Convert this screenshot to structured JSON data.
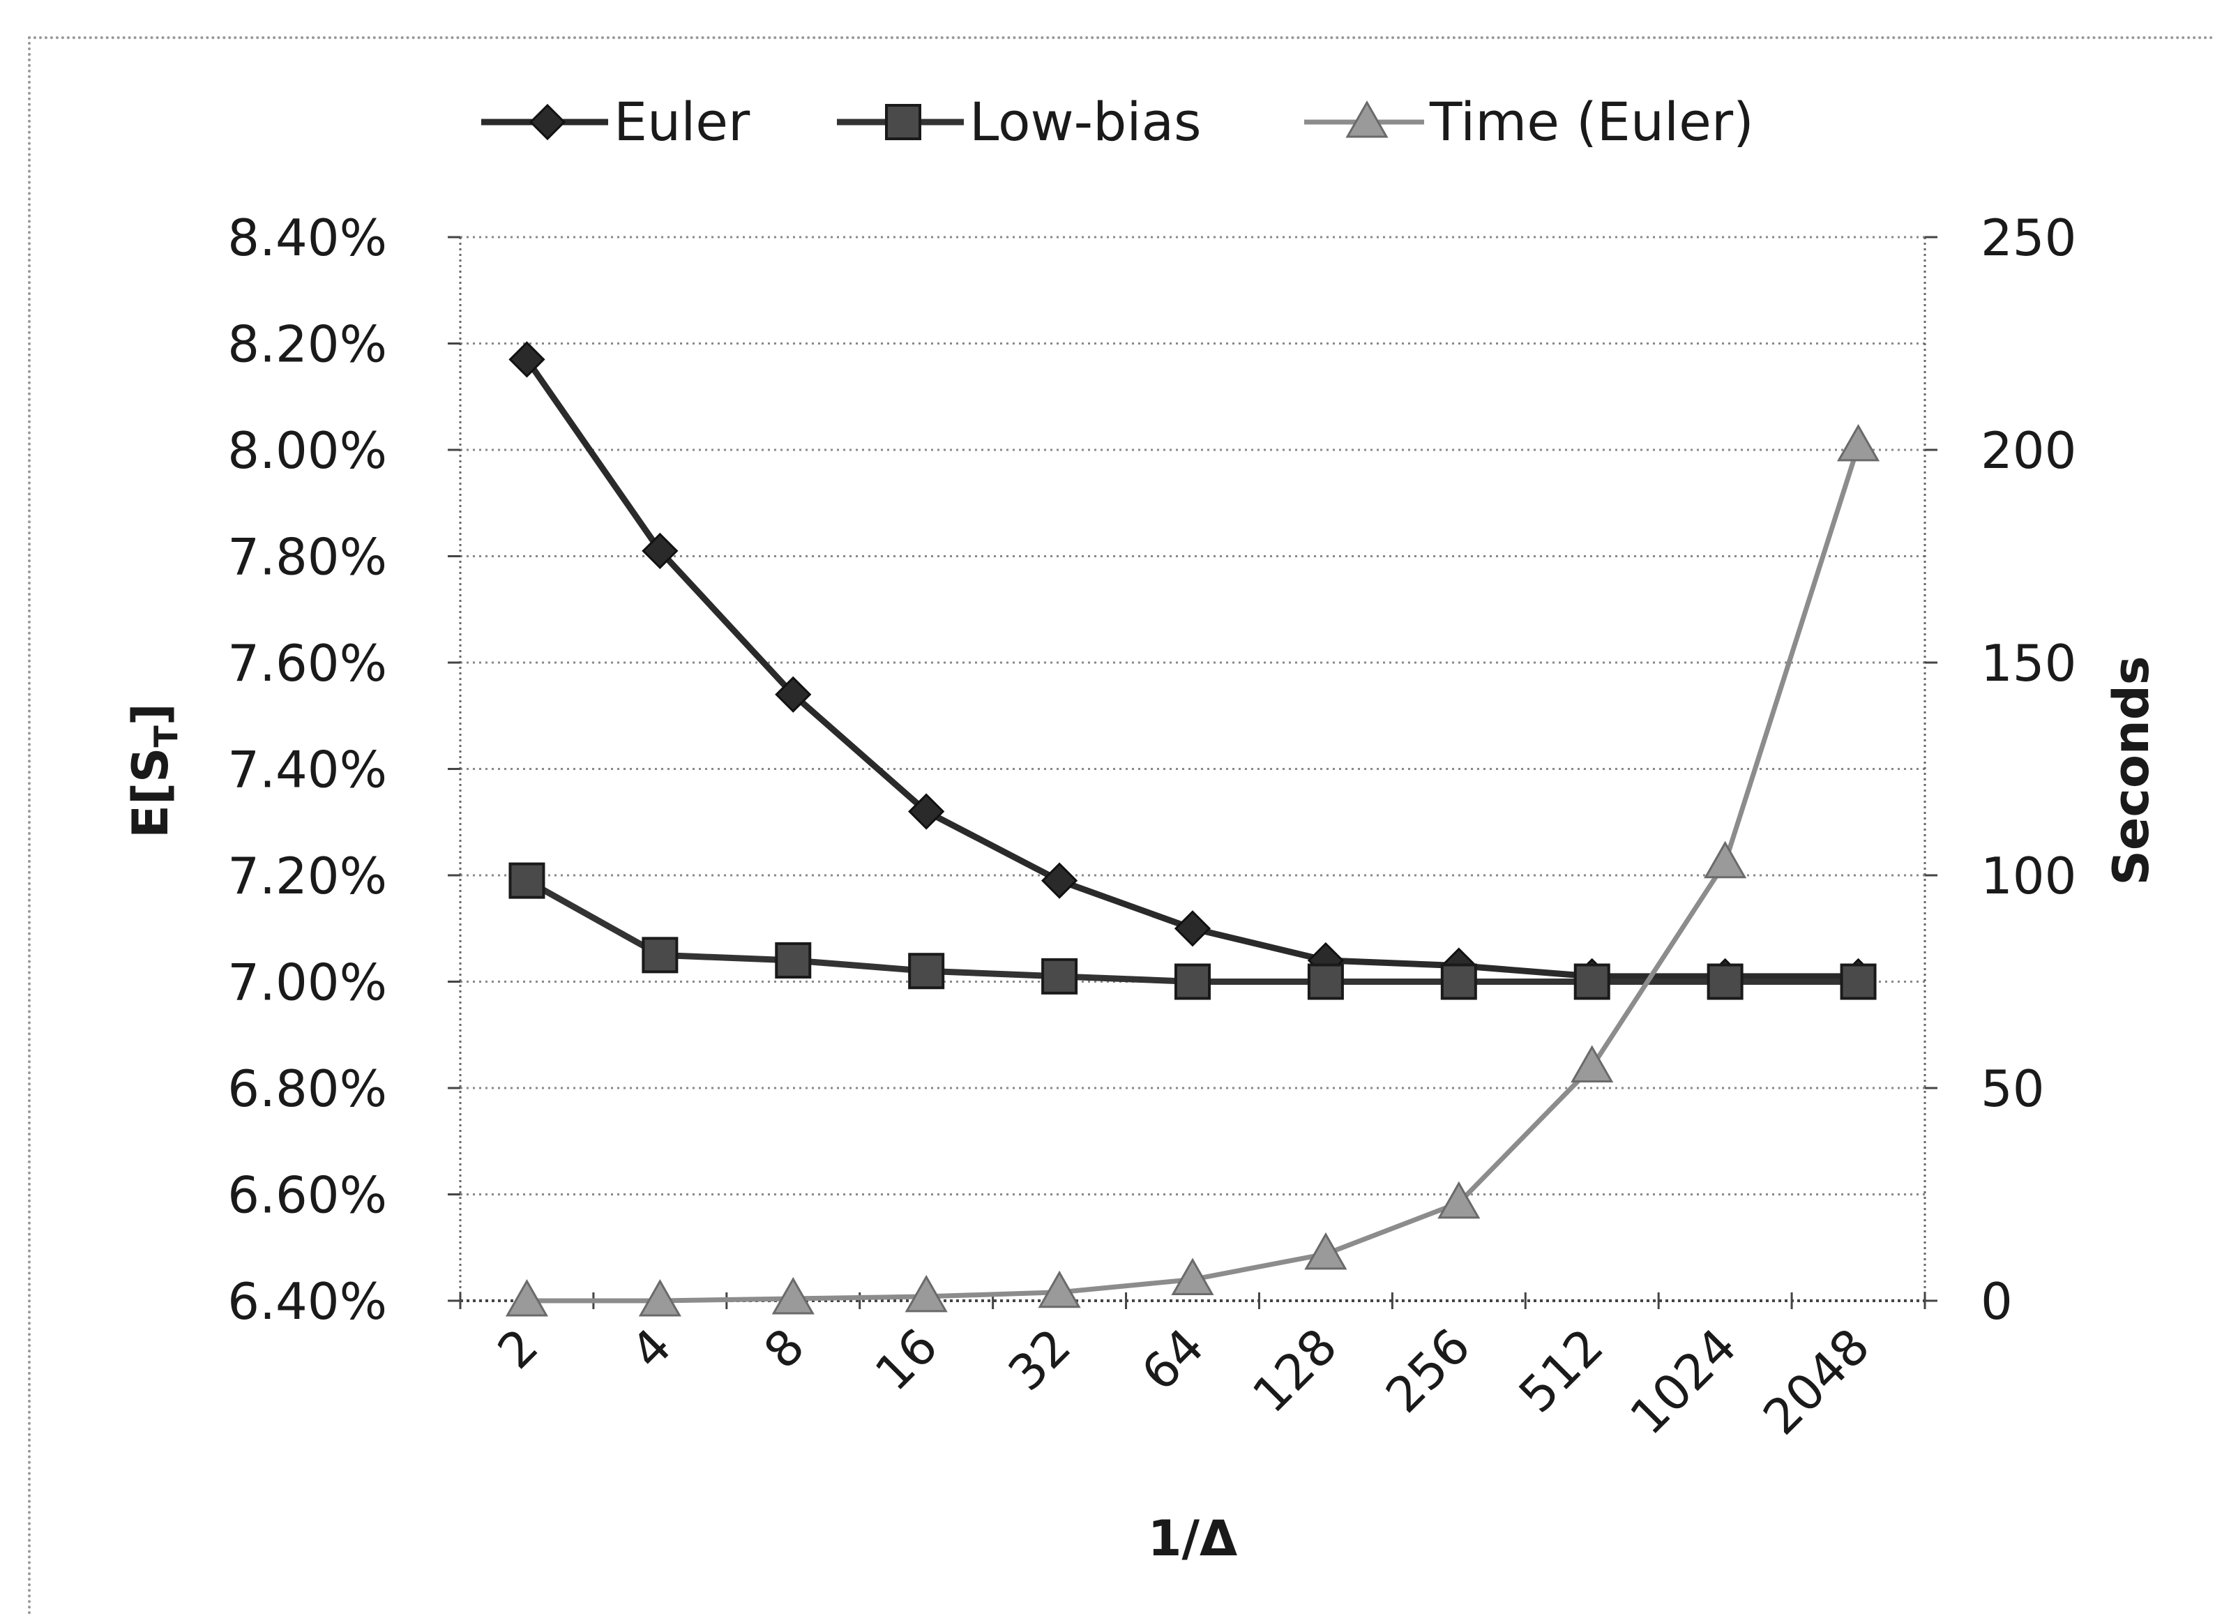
{
  "chart_data": {
    "type": "line",
    "categories": [
      "2",
      "4",
      "8",
      "16",
      "32",
      "64",
      "128",
      "256",
      "512",
      "1024",
      "2048"
    ],
    "xlabel": "1/Δ",
    "ylabel_left": "E[S",
    "ylabel_left_sub": "T",
    "ylabel_left_close": "]",
    "ylabel_right": "Seconds",
    "ylim_left": [
      6.4,
      8.4
    ],
    "yticks_left": [
      "6.40%",
      "6.60%",
      "6.80%",
      "7.00%",
      "7.20%",
      "7.40%",
      "7.60%",
      "7.80%",
      "8.00%",
      "8.20%",
      "8.40%"
    ],
    "ylim_right": [
      0,
      250
    ],
    "yticks_right": [
      "0",
      "50",
      "100",
      "150",
      "200",
      "250"
    ],
    "grid": true,
    "legend_position": "top",
    "series": [
      {
        "name": "Euler",
        "axis": "left",
        "marker": "diamond",
        "color": "#2a2a2a",
        "values": [
          8.17,
          7.81,
          7.54,
          7.32,
          7.19,
          7.1,
          7.04,
          7.03,
          7.01,
          7.01,
          7.01
        ]
      },
      {
        "name": "Low-bias",
        "axis": "left",
        "marker": "square",
        "color": "#333333",
        "values": [
          7.19,
          7.05,
          7.04,
          7.02,
          7.01,
          7.0,
          7.0,
          7.0,
          7.0,
          7.0,
          7.0
        ]
      },
      {
        "name": "Time (Euler)",
        "axis": "right",
        "marker": "triangle",
        "color": "#8c8c8c",
        "values": [
          0,
          0,
          0.5,
          1,
          2,
          5,
          11,
          23,
          55,
          103,
          201
        ]
      }
    ]
  }
}
